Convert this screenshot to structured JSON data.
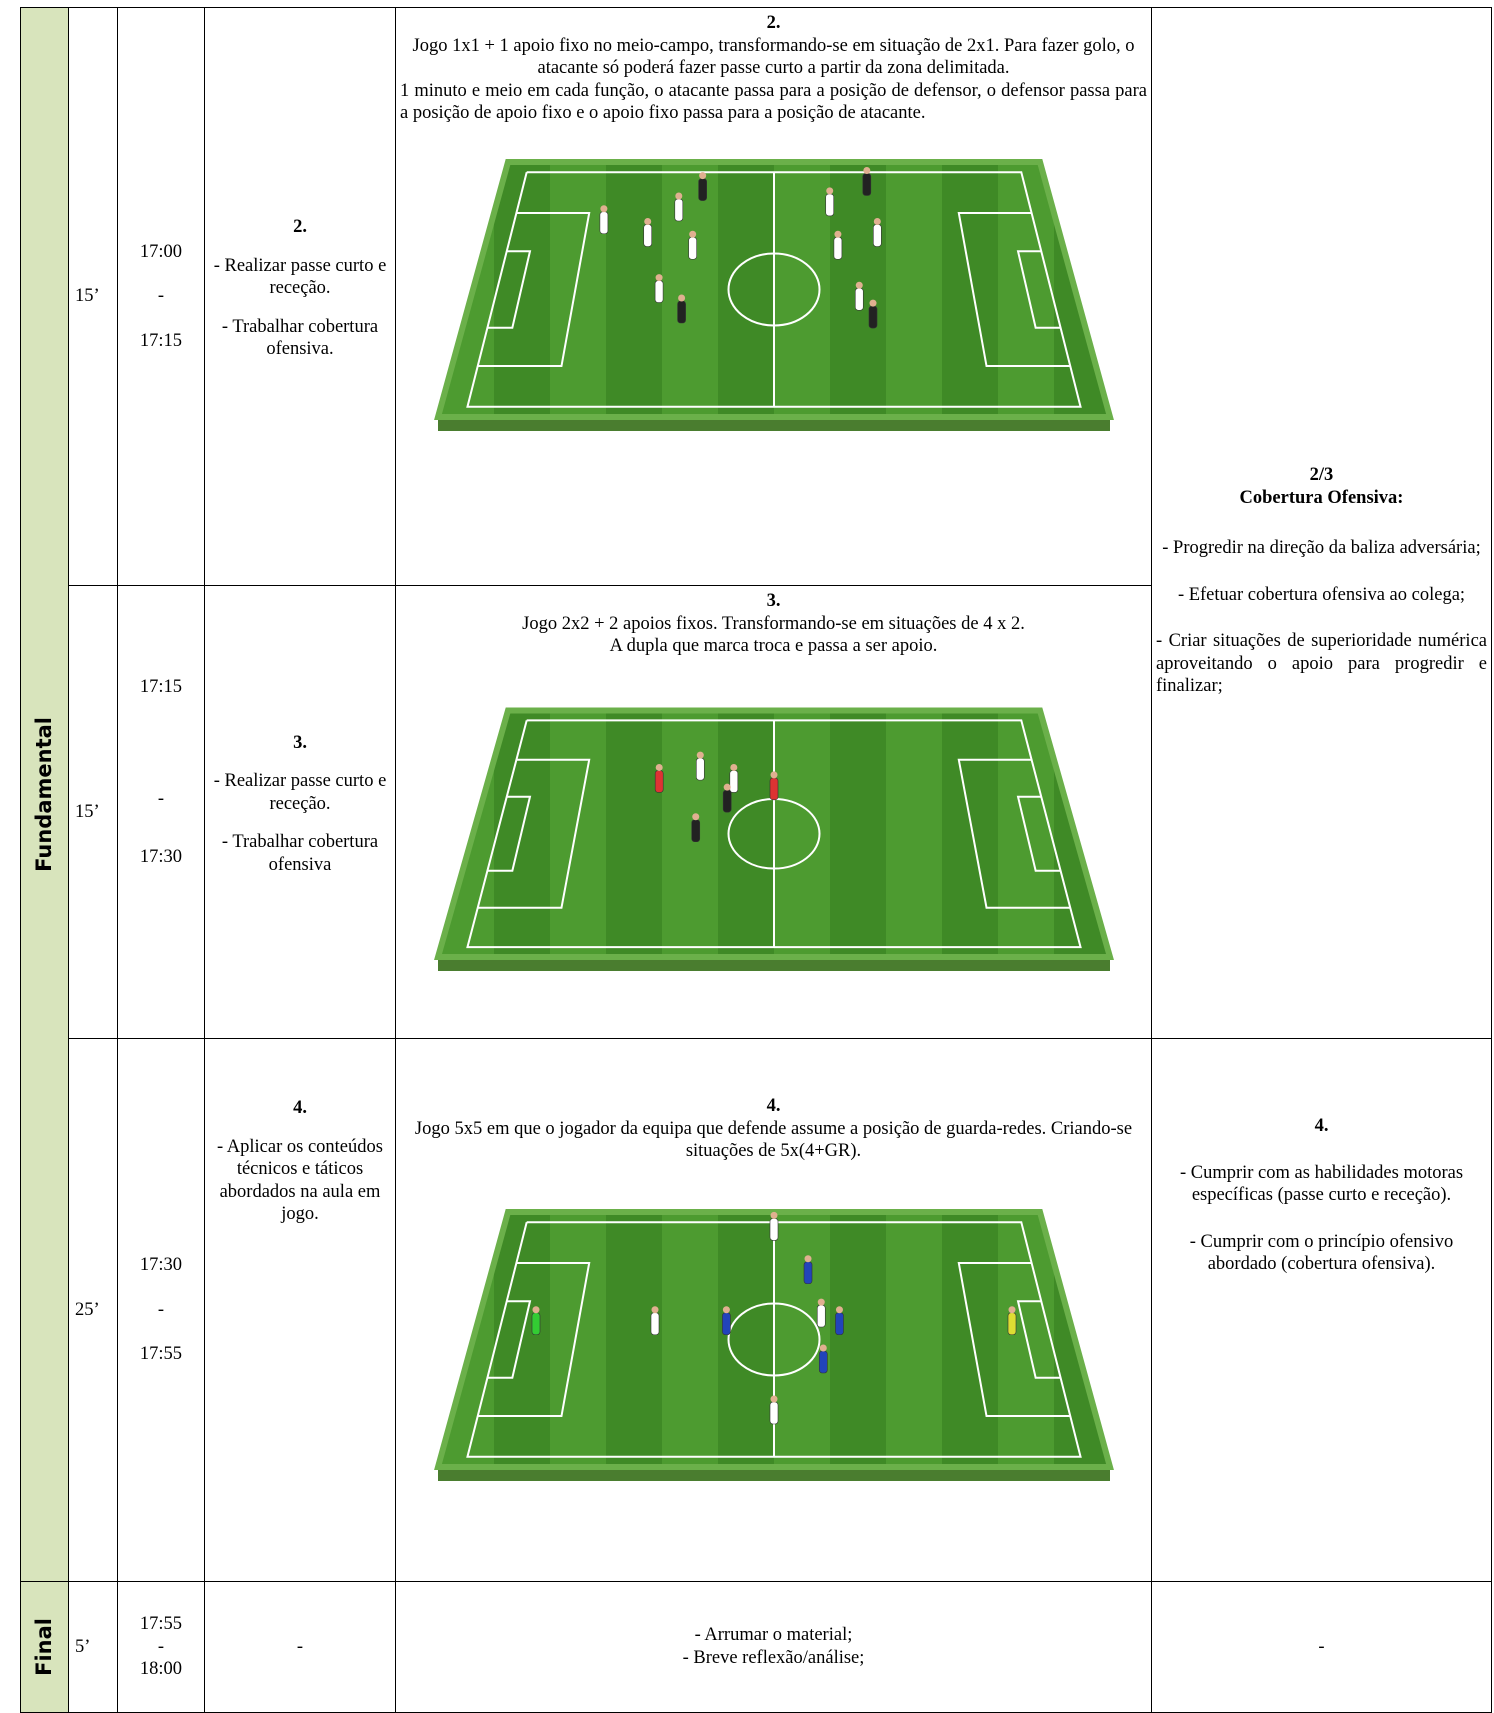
{
  "table": {
    "rows": [
      {
        "phase": "Fundamental",
        "duration": "15’",
        "time": [
          "17:00",
          "-",
          "17:15"
        ],
        "objective": {
          "number": "2.",
          "items": [
            "- Realizar passe curto e receção.",
            "- Trabalhar cobertura ofensiva."
          ]
        },
        "description": {
          "number": "2.",
          "text": [
            "Jogo 1x1 + 1 apoio fixo no meio-campo, transformando-se em situação de 2x1. Para fazer golo, o atacante só poderá fazer passe curto a partir da zona delimitada.",
            "1 minuto e meio em cada função, o atacante passa para a posição de defensor, o defensor passa para a posição de apoio fixo e o apoio fixo passa para a posição de atacante."
          ]
        },
        "criteria": {
          "number": "2/3",
          "title": "Cobertura Ofensiva:",
          "items": [
            "- Progredir na direção da baliza adversária;",
            "- Efetuar cobertura ofensiva ao colega;",
            "- Criar situações de superioridade numérica aproveitando o apoio para progredir e finalizar;"
          ]
        }
      },
      {
        "duration": "15’",
        "time": [
          "17:15",
          "-",
          "17:30"
        ],
        "objective": {
          "number": "3.",
          "items": [
            "- Realizar passe curto e receção.",
            "- Trabalhar cobertura ofensiva"
          ]
        },
        "description": {
          "number": "3.",
          "text": [
            "Jogo 2x2 + 2 apoios fixos. Transformando-se em situações de 4 x 2.",
            "A dupla que marca troca e passa a ser apoio."
          ]
        }
      },
      {
        "duration": "25’",
        "time": [
          "17:30",
          "-",
          "17:55"
        ],
        "objective": {
          "number": "4.",
          "items": [
            "- Aplicar os conteúdos técnicos e táticos abordados na aula em jogo."
          ]
        },
        "description": {
          "number": "4.",
          "text": [
            "Jogo 5x5 em que o jogador da equipa que defende assume a posição de guarda-redes. Criando-se situações de 5x(4+GR)."
          ]
        },
        "criteria": {
          "number": "4.",
          "items": [
            "- Cumprir com as habilidades motoras específicas (passe curto e receção).",
            "- Cumprir com o princípio ofensivo abordado (cobertura ofensiva)."
          ]
        }
      },
      {
        "phase": "Final",
        "duration": "5’",
        "time": [
          "17:55",
          "-",
          "18:00"
        ],
        "objective": {
          "items": [
            "-"
          ]
        },
        "description": {
          "text": [
            "- Arrumar o material;",
            "- Breve reflexão/análise;"
          ]
        },
        "criteria": {
          "items": [
            "-"
          ]
        }
      }
    ]
  }
}
